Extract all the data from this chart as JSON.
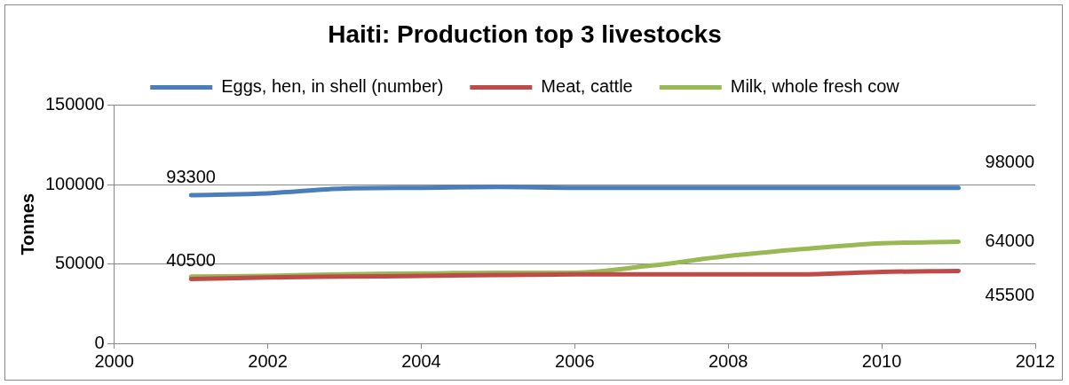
{
  "chart_data": {
    "type": "line",
    "title": "Haiti: Production top 3 livestocks",
    "ylabel": "Tonnes",
    "x": [
      2001,
      2002,
      2003,
      2004,
      2005,
      2006,
      2007,
      2008,
      2009,
      2010,
      2011
    ],
    "series": [
      {
        "name": "Eggs, hen, in shell (number)",
        "color": "#4a7ebb",
        "values": [
          93300,
          94500,
          97500,
          98000,
          98500,
          98000,
          98000,
          98000,
          98000,
          98000,
          98000
        ],
        "value_labels": [
          "93300",
          null,
          null,
          null,
          null,
          null,
          null,
          null,
          null,
          null,
          "98000"
        ]
      },
      {
        "name": "Meat, cattle",
        "color": "#be4b48",
        "values": [
          40500,
          41500,
          42000,
          42500,
          43000,
          43500,
          43500,
          43500,
          43500,
          45000,
          45500
        ],
        "value_labels": [
          "40500",
          null,
          null,
          null,
          null,
          null,
          null,
          null,
          null,
          null,
          "45500"
        ]
      },
      {
        "name": "Milk, whole fresh cow",
        "color": "#98b954",
        "values": [
          42000,
          42500,
          43500,
          44000,
          44500,
          44500,
          49000,
          55000,
          59500,
          63000,
          64000
        ],
        "value_labels": [
          null,
          null,
          null,
          null,
          null,
          null,
          null,
          null,
          null,
          null,
          "64000"
        ]
      }
    ],
    "xlim": [
      2000,
      2012
    ],
    "xticks": [
      2000,
      2002,
      2004,
      2006,
      2008,
      2010,
      2012
    ],
    "ylim": [
      0,
      150000
    ],
    "yticks": [
      0,
      50000,
      100000,
      150000
    ],
    "grid": "y",
    "legend": "top",
    "marker": "none",
    "line_style": "solid"
  }
}
